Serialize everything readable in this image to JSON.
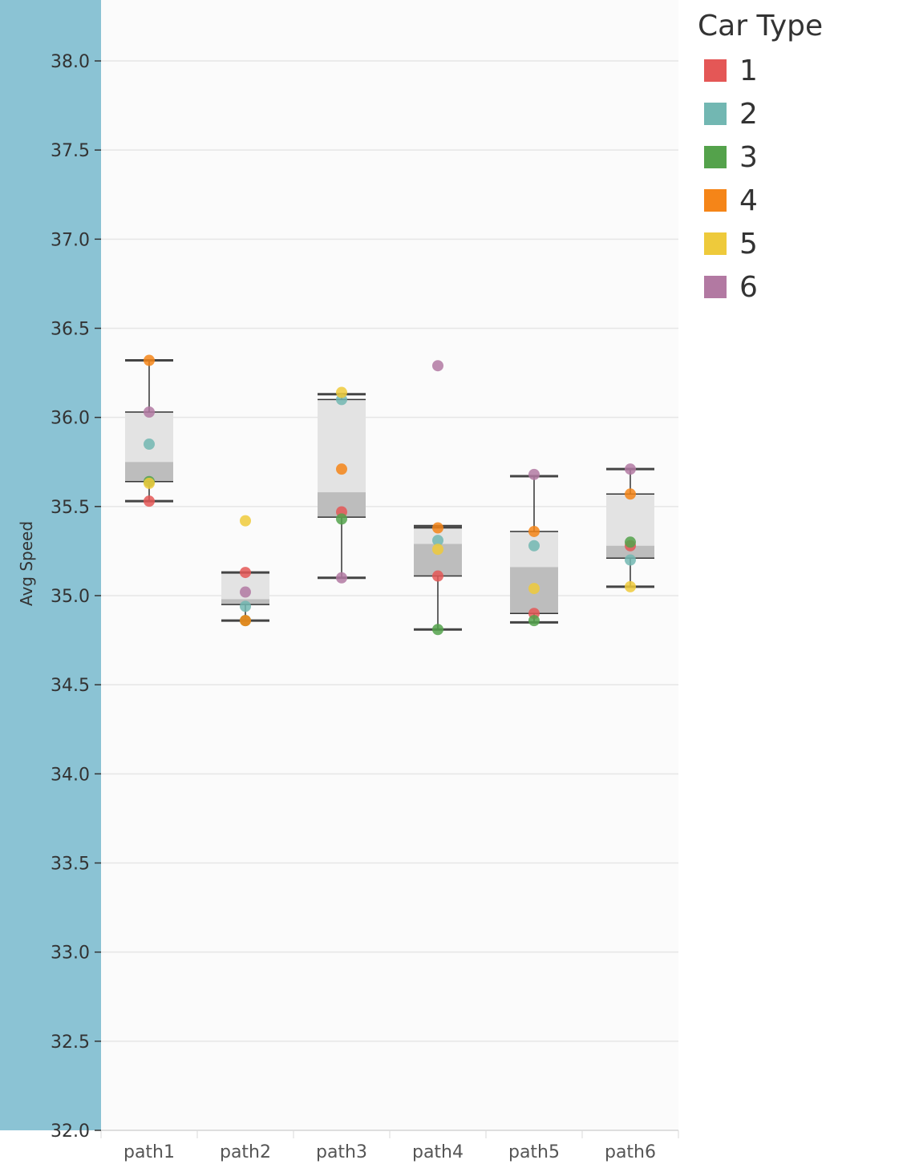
{
  "chart_data": {
    "type": "box",
    "ylabel": "Avg Speed",
    "ylim": [
      32.0,
      38.0
    ],
    "yticks": [
      "38.0",
      "37.5",
      "37.0",
      "36.5",
      "36.0",
      "35.5",
      "35.0",
      "34.5",
      "34.0",
      "33.5",
      "33.0",
      "32.5",
      "32.0"
    ],
    "categories": [
      "path1",
      "path2",
      "path3",
      "path4",
      "path5",
      "path6"
    ],
    "legend": {
      "title": "Car Type",
      "position": "top-right",
      "items": [
        {
          "label": "1",
          "color": "#e45756"
        },
        {
          "label": "2",
          "color": "#72b7b2"
        },
        {
          "label": "3",
          "color": "#54a24b"
        },
        {
          "label": "4",
          "color": "#f58518"
        },
        {
          "label": "5",
          "color": "#eeca3b"
        },
        {
          "label": "6",
          "color": "#b279a2"
        }
      ]
    },
    "boxes": [
      {
        "category": "path1",
        "whisker_low": 35.53,
        "q1": 35.64,
        "median": 35.75,
        "q3": 36.03,
        "whisker_high": 36.32
      },
      {
        "category": "path2",
        "whisker_low": 34.86,
        "q1": 34.95,
        "median": 34.98,
        "q3": 35.13,
        "whisker_high": 35.13
      },
      {
        "category": "path3",
        "whisker_low": 35.1,
        "q1": 35.44,
        "median": 35.58,
        "q3": 36.1,
        "whisker_high": 36.13
      },
      {
        "category": "path4",
        "whisker_low": 34.81,
        "q1": 35.11,
        "median": 35.29,
        "q3": 35.38,
        "whisker_high": 35.39
      },
      {
        "category": "path5",
        "whisker_low": 34.85,
        "q1": 34.9,
        "median": 35.16,
        "q3": 35.36,
        "whisker_high": 35.67
      },
      {
        "category": "path6",
        "whisker_low": 35.05,
        "q1": 35.21,
        "median": 35.28,
        "q3": 35.57,
        "whisker_high": 35.71
      }
    ],
    "series": [
      {
        "name": "1",
        "values": [
          35.53,
          35.13,
          35.47,
          35.11,
          34.9,
          35.28
        ]
      },
      {
        "name": "2",
        "values": [
          35.85,
          34.94,
          36.1,
          35.31,
          35.28,
          35.2
        ]
      },
      {
        "name": "3",
        "values": [
          35.64,
          34.86,
          35.43,
          34.81,
          34.86,
          35.3
        ]
      },
      {
        "name": "4",
        "values": [
          36.32,
          34.86,
          35.71,
          35.38,
          35.36,
          35.57
        ]
      },
      {
        "name": "5",
        "values": [
          35.63,
          35.42,
          36.14,
          35.26,
          35.04,
          35.05
        ]
      },
      {
        "name": "6",
        "values": [
          36.03,
          35.02,
          35.1,
          36.29,
          35.68,
          35.71
        ]
      }
    ],
    "grid": true
  }
}
